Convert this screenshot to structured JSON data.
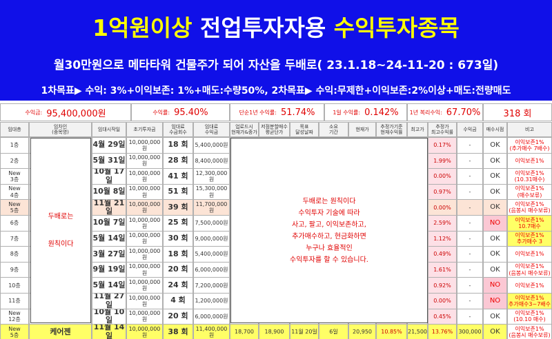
{
  "header": {
    "title": [
      "1억원이상",
      "전업투자자용",
      "수익투자종목"
    ],
    "subtitle": "월30만원으로 메타타워 건물주가 되어 자산을 두배로( 23.1.18~24-11-20 :  673일)",
    "goals": "1차목표▶ 수익: 3%+이익보존: 1%+매도:수량50%, 2차목표▶ 수익:무제한+이익보존:2%이상+매도:전량매도"
  },
  "summary": [
    {
      "label": "수익금:",
      "value": "95,400,000원"
    },
    {
      "label": "수익률:",
      "value": "95.40%"
    },
    {
      "label": "단순1년 수익률:",
      "value": "51.74%"
    },
    {
      "label": "1일 수익률:",
      "value": "0.142%"
    },
    {
      "label": "1년 복리수익:",
      "value": "67.70%"
    },
    {
      "value": "318 회"
    }
  ],
  "table": {
    "columns": [
      [
        "임대층"
      ],
      [
        "임차인",
        "(종목명)"
      ],
      [
        "임대시작일"
      ],
      [
        "초기투자금"
      ],
      [
        "임대료",
        "수금회수"
      ],
      [
        "임대료",
        "수익금"
      ],
      [
        "업로드시",
        "현재가&종가"
      ],
      [
        "저점분할매수",
        "평균단가"
      ],
      [
        "목표",
        "달성날짜"
      ],
      [
        "소요",
        "기간"
      ],
      [
        "현재가"
      ],
      [
        "추정가기준",
        "현재수익률"
      ],
      [
        "최고가"
      ],
      [
        "추정가",
        "최고수익률"
      ],
      [
        "수익금"
      ],
      [
        "매수시점"
      ],
      [
        "비고"
      ]
    ],
    "tenant_box": [
      "두배로는",
      "원칙이다"
    ],
    "message_box": [
      "두배로는 원칙이다",
      "수익투자 기술에 따라",
      "사고, 팔고, 이익보존하고,",
      "추가매수하고, 현금화하면",
      "누구나 효율적인",
      "수익투자를 할 수 있습니다."
    ],
    "rows": [
      {
        "floor": [
          "1층"
        ],
        "start": "4월 29일",
        "invest": "10,000,000원",
        "count": "18 회",
        "income": "5,400,000원",
        "max_rate": "0.17%",
        "profit": "-",
        "buy": "OK",
        "note": [
          "이익보존1%",
          "(추가매수 7배수)"
        ]
      },
      {
        "floor": [
          "2층"
        ],
        "start": "5월 31일",
        "invest": "10,000,000원",
        "count": "28 회",
        "income": "8,400,000원",
        "max_rate": "1.99%",
        "profit": "-",
        "buy": "OK",
        "note": [
          "이익보존1%"
        ]
      },
      {
        "floor": [
          "New",
          "3층"
        ],
        "start": "10월 17일",
        "invest": "10,000,000원",
        "count": "41 회",
        "income": "12,300,000원",
        "max_rate": "0.00%",
        "profit": "-",
        "buy": "OK",
        "note": [
          "이익보존1%",
          "(10.31매수)"
        ]
      },
      {
        "floor": [
          "New",
          "4층"
        ],
        "start": "10월 8일",
        "invest": "10,000,000원",
        "count": "51 회",
        "income": "15,300,000원",
        "max_rate": "0.97%",
        "profit": "-",
        "buy": "OK",
        "note": [
          "이익보존1%",
          "(매수보류)"
        ]
      },
      {
        "floor": [
          "New",
          "5층"
        ],
        "start": "11월 21일",
        "invest": "10,000,000원",
        "count": "39 회",
        "income": "11,700,000원",
        "max_rate": "0.00%",
        "profit": "-",
        "buy": "OK",
        "note": [
          "이익보존1%",
          "(음봉시 매수보류)"
        ],
        "row_bg": "#fce4d6"
      },
      {
        "floor": [
          "6층"
        ],
        "start": "10월 7일",
        "invest": "10,000,000원",
        "count": "25 회",
        "income": "7,500,000원",
        "max_rate": "2.59%",
        "profit": "-",
        "buy": "NO",
        "note": [
          "이익보존1%",
          "10.7매수"
        ],
        "note_bg": "#ffff66"
      },
      {
        "floor": [
          "7층"
        ],
        "start": "5월 14일",
        "invest": "10,000,000원",
        "count": "30 회",
        "income": "9,000,000원",
        "max_rate": "1.12%",
        "profit": "-",
        "buy": "OK",
        "note": [
          "이익보존1%",
          "추가매수 3"
        ],
        "note_bg": "#ffff66"
      },
      {
        "floor": [
          "8층"
        ],
        "start": "3월 27일",
        "invest": "10,000,000원",
        "count": "18 회",
        "income": "5,400,000원",
        "max_rate": "0.49%",
        "profit": "-",
        "buy": "OK",
        "note": [
          "이익보존1%"
        ]
      },
      {
        "floor": [
          "9층"
        ],
        "start": "9월 19일",
        "invest": "10,000,000원",
        "count": "20 회",
        "income": "6,000,000원",
        "max_rate": "1.61%",
        "profit": "-",
        "buy": "OK",
        "note": [
          "이익보존1%",
          "(음봉시 매수보류)"
        ]
      },
      {
        "floor": [
          "10층"
        ],
        "start": "5월 14일",
        "invest": "10,000,000원",
        "count": "24 회",
        "income": "7,200,000원",
        "max_rate": "0.92%",
        "profit": "-",
        "buy": "NO",
        "note": [
          "이익보존1%"
        ]
      },
      {
        "floor": [
          "11층"
        ],
        "start": "11월 27일",
        "invest": "10,000,000원",
        "count": "4 회",
        "income": "1,200,000원",
        "max_rate": "0.00%",
        "profit": "-",
        "buy": "NO",
        "note": [
          "이익보존1%",
          "추가매수3~7배수"
        ],
        "note_bg": "#ffff66"
      },
      {
        "floor": [
          "New",
          "12층"
        ],
        "start": "10월 10일",
        "invest": "10,000,000원",
        "count": "20 회",
        "income": "6,000,000원",
        "max_rate": "0.45%",
        "profit": "-",
        "buy": "OK",
        "note": [
          "이익보존1%",
          "(10.10 매수)"
        ]
      },
      {
        "floor": [
          "New",
          "5층"
        ],
        "name": "케어젠",
        "start": "11월 14일",
        "invest": "10,000,000원",
        "count": "38 회",
        "income": "11,400,000원",
        "upload": "18,700",
        "avg": "18,900",
        "goal_date": "11월 20일",
        "period": "6일",
        "price": "20,950",
        "cur_rate": "10.85%",
        "high": "21,500",
        "max_rate": "13.76%",
        "profit": "300,000",
        "buy": "OK",
        "note": [
          "이익보존1%",
          "(음봉시 매수보류)"
        ],
        "row_bg": "#ffff66"
      }
    ]
  }
}
